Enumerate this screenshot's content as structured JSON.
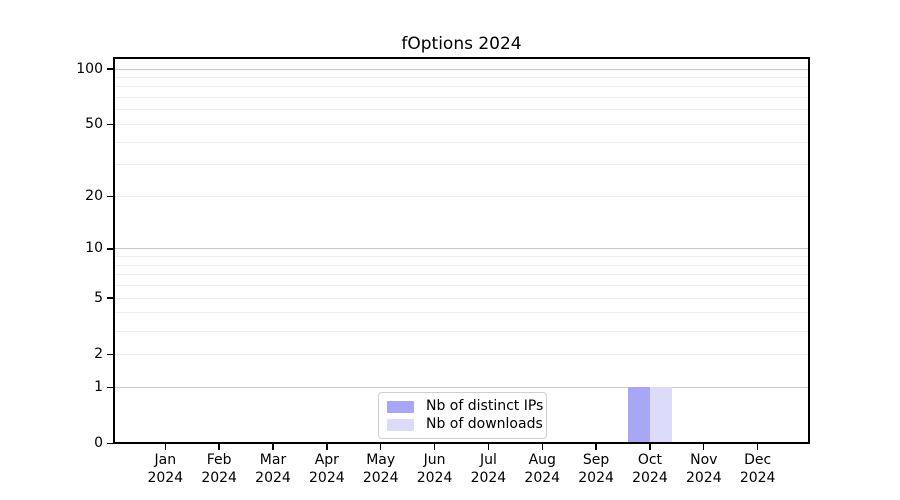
{
  "title": "fOptions 2024",
  "chart_data": {
    "type": "bar",
    "title": "fOptions 2024",
    "categories": [
      "Jan",
      "Feb",
      "Mar",
      "Apr",
      "May",
      "Jun",
      "Jul",
      "Aug",
      "Sep",
      "Oct",
      "Nov",
      "Dec"
    ],
    "x_year_label": "2024",
    "series": [
      {
        "name": "Nb of distinct IPs",
        "color": "#a7a7f6",
        "values": [
          0,
          0,
          0,
          0,
          0,
          0,
          0,
          0,
          0,
          1,
          0,
          0
        ]
      },
      {
        "name": "Nb of downloads",
        "color": "#dcdcfa",
        "values": [
          0,
          0,
          0,
          0,
          0,
          0,
          0,
          0,
          0,
          1,
          0,
          0
        ]
      }
    ],
    "y_scale": "log1p",
    "y_ticks": [
      0,
      1,
      2,
      5,
      10,
      20,
      50,
      100
    ],
    "ylim": [
      0,
      116
    ],
    "grid": {
      "major_lines": [
        1,
        10,
        100
      ],
      "minor_lines": [
        2,
        3,
        4,
        5,
        6,
        7,
        8,
        9,
        20,
        30,
        40,
        50,
        60,
        70,
        80,
        90
      ],
      "major_color": "#c9c9c9",
      "minor_color": "#ececec"
    },
    "legend": {
      "position": "lower center"
    }
  },
  "colors": {
    "background": "#ffffff",
    "text": "#000000",
    "spine": "#000000"
  }
}
